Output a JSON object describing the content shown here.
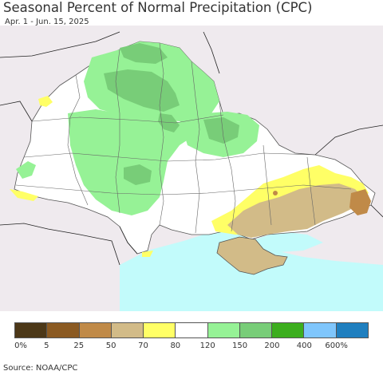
{
  "header": {
    "title": "Seasonal Percent of Normal Precipitation (CPC)",
    "subtitle": "Apr. 1 - Jun. 15, 2025"
  },
  "legend": {
    "colors": [
      "#4c3818",
      "#8b5a22",
      "#c08a48",
      "#d2bb88",
      "#ffff66",
      "#ffffff",
      "#96f296",
      "#78cd78",
      "#3cae1e",
      "#7fc6fc",
      "#1f7fbf"
    ],
    "ticks": [
      "0%",
      "5",
      "25",
      "50",
      "70",
      "80",
      "120",
      "150",
      "200",
      "400",
      "600%"
    ]
  },
  "map": {
    "sea_color": "#c2fbfb",
    "outside_color": "#efeaee",
    "country_color": "#ffffff"
  },
  "footer": {
    "source": "Source: NOAA/CPC"
  }
}
